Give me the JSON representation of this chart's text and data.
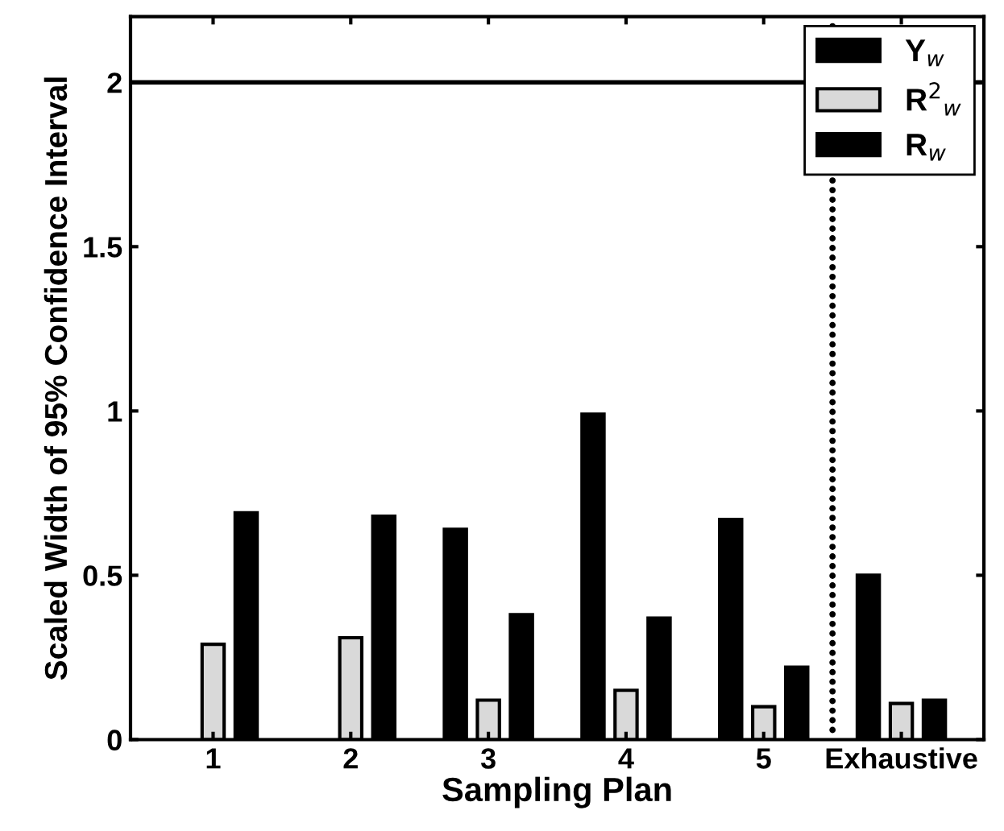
{
  "chart_data": {
    "type": "bar",
    "xlabel": "Sampling Plan",
    "ylabel": "Scaled Width of 95% Confidence Interval",
    "categories": [
      "1",
      "2",
      "3",
      "4",
      "5",
      "Exhaustive"
    ],
    "series": [
      {
        "name": "Y$_{w}$",
        "color": "#000000",
        "values": [
          null,
          null,
          0.64,
          0.99,
          0.67,
          0.5
        ]
      },
      {
        "name": "R$^{2}$$_{w}$",
        "color": "#d9d9d9",
        "values": [
          0.29,
          0.31,
          0.12,
          0.15,
          0.1,
          0.11
        ]
      },
      {
        "name": "R$_{w}$",
        "color": "#000000",
        "values": [
          0.69,
          0.68,
          0.38,
          0.37,
          0.22,
          0.12
        ]
      }
    ],
    "ylim": [
      0,
      2.2
    ],
    "yticks": [
      0,
      0.5,
      1,
      1.5,
      2
    ],
    "ref_lines": [
      {
        "axis": "y",
        "value": 2,
        "color": "#000000",
        "line_style": "solid"
      }
    ],
    "legend": "top right",
    "grid": false
  }
}
